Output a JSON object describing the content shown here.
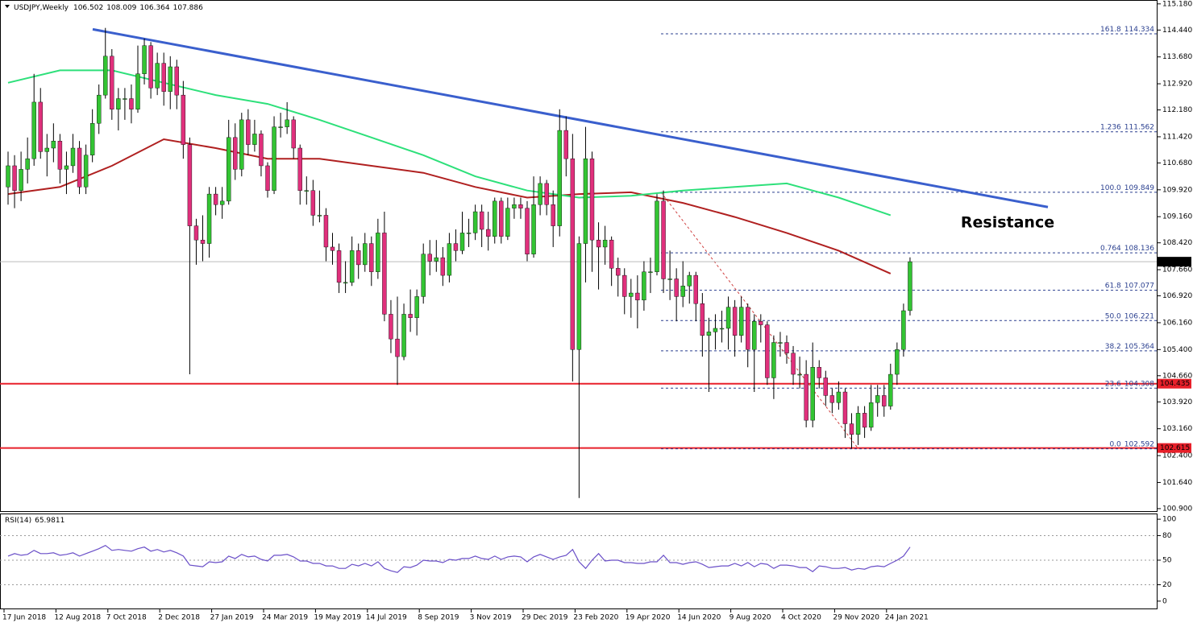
{
  "chart_data": {
    "type": "candlestick",
    "symbol": "USDJPY,Weekly",
    "categories": [
      "17 Jun 2018",
      null,
      null,
      null,
      null,
      null,
      null,
      null,
      "12 Aug 2018",
      null,
      null,
      null,
      null,
      null,
      null,
      null,
      "7 Oct 2018",
      null,
      null,
      null,
      null,
      null,
      null,
      null,
      "2 Dec 2018",
      null,
      null,
      null,
      null,
      null,
      null,
      null,
      "27 Jan 2019",
      null,
      null,
      null,
      null,
      null,
      null,
      null,
      "24 Mar 2019",
      null,
      null,
      null,
      null,
      null,
      null,
      null,
      "19 May 2019",
      null,
      null,
      null,
      null,
      null,
      null,
      null,
      "14 Jul 2019",
      null,
      null,
      null,
      null,
      null,
      null,
      null,
      "8 Sep 2019",
      null,
      null,
      null,
      null,
      null,
      null,
      null,
      "3 Nov 2019",
      null,
      null,
      null,
      null,
      null,
      null,
      null,
      "29 Dec 2019",
      null,
      null,
      null,
      null,
      null,
      null,
      null,
      "23 Feb 2020",
      null,
      null,
      null,
      null,
      null,
      null,
      null,
      "19 Apr 2020",
      null,
      null,
      null,
      null,
      null,
      null,
      null,
      "14 Jun 2020",
      null,
      null,
      null,
      null,
      null,
      null,
      null,
      "9 Aug 2020",
      null,
      null,
      null,
      null,
      null,
      null,
      null,
      "4 Oct 2020",
      null,
      null,
      null,
      null,
      null,
      null,
      null,
      "29 Nov 2020",
      null,
      null,
      null,
      null,
      null,
      null,
      null,
      "24 Jan 2021",
      null,
      null,
      null
    ],
    "open": [
      110.0,
      110.6,
      109.9,
      110.5,
      110.8,
      112.4,
      111.0,
      111.1,
      111.3,
      110.5,
      110.6,
      111.1,
      110.0,
      110.9,
      111.8,
      112.6,
      113.7,
      112.2,
      112.5,
      112.5,
      112.2,
      113.2,
      114.0,
      112.8,
      113.5,
      112.7,
      113.4,
      112.6,
      111.2,
      108.9,
      108.5,
      108.4,
      109.8,
      109.5,
      109.6,
      111.4,
      110.5,
      111.9,
      111.2,
      111.5,
      110.6,
      109.9,
      111.7,
      111.7,
      111.9,
      111.1,
      109.9,
      109.9,
      109.2,
      109.2,
      108.3,
      108.2,
      107.3,
      107.3,
      108.2,
      107.8,
      108.4,
      107.6,
      108.7,
      106.4,
      105.7,
      105.2,
      106.4,
      106.3,
      106.9,
      108.1,
      107.9,
      108.0,
      107.5,
      108.4,
      108.2,
      108.7,
      108.7,
      109.3,
      108.8,
      108.6,
      109.6,
      108.6,
      109.4,
      109.5,
      109.4,
      108.1,
      109.5,
      110.1,
      109.5,
      108.9,
      111.6,
      110.8,
      105.4,
      108.4,
      110.8,
      108.5,
      108.3,
      108.5,
      107.7,
      107.5,
      106.9,
      107.0,
      106.8,
      107.6,
      107.6,
      109.6,
      107.4,
      107.4,
      106.9,
      107.2,
      107.5,
      106.7,
      105.8,
      105.9,
      106.0,
      106.0,
      106.6,
      105.8,
      106.6,
      105.4,
      106.2,
      106.1,
      104.6,
      105.6,
      105.6,
      105.3,
      104.7,
      104.7,
      103.4,
      104.9,
      104.6,
      104.1,
      103.9,
      104.2,
      103.3,
      103.0,
      103.6,
      103.2,
      103.9,
      104.1,
      103.8,
      104.7,
      105.4,
      106.502
    ],
    "high": [
      111.0,
      110.9,
      111.0,
      111.4,
      113.2,
      112.8,
      111.5,
      111.8,
      111.5,
      111.0,
      111.5,
      111.3,
      111.2,
      112.2,
      112.9,
      114.5,
      113.9,
      112.8,
      112.8,
      112.9,
      114.0,
      114.2,
      114.1,
      113.8,
      113.8,
      113.7,
      113.6,
      113.0,
      111.4,
      109.1,
      109.2,
      110.0,
      110.0,
      110.0,
      111.9,
      111.8,
      112.1,
      112.2,
      111.9,
      111.6,
      110.7,
      112.0,
      112.1,
      112.4,
      112.0,
      111.2,
      110.3,
      110.2,
      109.9,
      109.4,
      108.7,
      108.4,
      107.9,
      108.6,
      108.4,
      108.7,
      108.6,
      109.1,
      109.3,
      106.8,
      106.9,
      106.7,
      107.1,
      107.1,
      108.4,
      108.5,
      108.5,
      108.3,
      108.7,
      108.8,
      109.3,
      109.1,
      109.5,
      109.5,
      109.3,
      109.7,
      109.7,
      109.7,
      109.7,
      109.7,
      109.6,
      110.3,
      110.3,
      110.2,
      109.9,
      112.2,
      112.0,
      111.5,
      108.6,
      111.7,
      111.0,
      109.0,
      108.9,
      108.6,
      108.0,
      107.7,
      107.4,
      107.5,
      107.9,
      108.0,
      109.8,
      109.9,
      108.2,
      107.7,
      107.9,
      107.6,
      107.6,
      107.0,
      106.3,
      106.4,
      106.5,
      106.9,
      106.8,
      106.9,
      106.7,
      106.4,
      106.4,
      106.2,
      105.8,
      105.9,
      105.8,
      105.5,
      105.2,
      105.1,
      105.6,
      105.1,
      104.8,
      104.3,
      104.5,
      104.3,
      103.6,
      103.8,
      103.8,
      104.4,
      104.4,
      104.4,
      105.0,
      105.6,
      106.7,
      108.009
    ],
    "low": [
      109.5,
      109.4,
      109.6,
      110.1,
      110.6,
      110.8,
      110.3,
      110.7,
      110.1,
      109.8,
      110.4,
      109.8,
      109.8,
      110.7,
      111.5,
      112.5,
      111.9,
      111.6,
      111.9,
      111.8,
      112.1,
      112.9,
      112.5,
      112.6,
      112.3,
      112.2,
      112.2,
      110.8,
      104.7,
      107.8,
      107.9,
      108.0,
      109.2,
      109.1,
      109.5,
      110.2,
      110.3,
      110.9,
      111.0,
      110.3,
      109.7,
      109.8,
      111.4,
      111.5,
      110.8,
      109.5,
      109.5,
      108.9,
      109.0,
      107.9,
      107.8,
      107.0,
      107.0,
      107.2,
      107.4,
      107.6,
      107.2,
      107.4,
      106.2,
      105.3,
      104.4,
      105.1,
      105.9,
      105.8,
      106.7,
      107.5,
      107.6,
      107.2,
      107.3,
      107.9,
      108.1,
      108.3,
      108.5,
      108.3,
      108.2,
      108.4,
      108.4,
      108.5,
      109.1,
      109.1,
      107.9,
      108.0,
      109.2,
      109.2,
      108.3,
      108.6,
      110.3,
      104.5,
      101.2,
      107.3,
      107.6,
      107.1,
      107.8,
      107.2,
      106.9,
      106.4,
      106.3,
      106.0,
      106.5,
      107.0,
      107.5,
      107.0,
      106.8,
      106.2,
      106.6,
      106.7,
      106.2,
      105.2,
      104.2,
      105.4,
      105.6,
      105.4,
      105.2,
      105.6,
      104.9,
      104.2,
      105.6,
      104.4,
      104.0,
      105.2,
      105.0,
      104.4,
      104.3,
      103.2,
      103.2,
      104.3,
      103.8,
      103.6,
      103.7,
      102.9,
      102.6,
      102.7,
      102.9,
      103.1,
      103.5,
      103.5,
      103.7,
      104.4,
      105.2,
      106.364
    ],
    "close": [
      110.6,
      109.9,
      110.5,
      110.8,
      112.4,
      111.0,
      111.1,
      111.3,
      110.5,
      110.6,
      111.1,
      110.0,
      110.9,
      111.8,
      112.6,
      113.7,
      112.2,
      112.5,
      112.5,
      112.2,
      113.2,
      114.0,
      112.8,
      113.5,
      112.7,
      113.4,
      112.6,
      111.2,
      108.9,
      108.5,
      108.4,
      109.8,
      109.5,
      109.6,
      111.4,
      110.5,
      111.9,
      111.2,
      111.5,
      110.6,
      109.9,
      111.7,
      111.7,
      111.9,
      111.1,
      109.9,
      109.9,
      109.2,
      109.2,
      108.3,
      108.2,
      107.3,
      107.3,
      108.2,
      107.8,
      108.4,
      107.6,
      108.7,
      106.4,
      105.7,
      105.2,
      106.4,
      106.3,
      106.9,
      108.1,
      107.9,
      108.0,
      107.5,
      108.4,
      108.2,
      108.7,
      108.7,
      109.3,
      108.8,
      108.6,
      109.6,
      108.6,
      109.4,
      109.5,
      109.4,
      108.1,
      109.5,
      110.1,
      109.5,
      108.9,
      111.6,
      110.8,
      105.4,
      108.4,
      110.8,
      108.5,
      108.3,
      108.5,
      107.7,
      107.5,
      106.9,
      107.0,
      106.8,
      107.6,
      107.6,
      109.6,
      107.4,
      107.4,
      106.9,
      107.2,
      107.5,
      106.7,
      105.8,
      105.9,
      106.0,
      106.0,
      106.6,
      105.8,
      106.6,
      105.4,
      106.2,
      106.1,
      104.6,
      105.6,
      105.6,
      105.3,
      104.7,
      104.7,
      103.4,
      104.9,
      104.6,
      104.1,
      103.9,
      104.2,
      103.3,
      103.0,
      103.6,
      103.2,
      103.9,
      104.1,
      103.8,
      104.7,
      105.4,
      106.5,
      107.886
    ],
    "up_color": "#33c433",
    "down_color": "#e0307c",
    "ylim": [
      100.83,
      115.29
    ],
    "yticks": [
      {
        "value": 100.9,
        "label": "100.900"
      },
      {
        "value": 101.64,
        "label": "101.640"
      },
      {
        "value": 102.4,
        "label": "102.400"
      },
      {
        "value": 103.16,
        "label": "103.160"
      },
      {
        "value": 103.92,
        "label": "103.920"
      },
      {
        "value": 104.66,
        "label": "104.660"
      },
      {
        "value": 105.4,
        "label": "105.400"
      },
      {
        "value": 106.16,
        "label": "106.160"
      },
      {
        "value": 106.92,
        "label": "106.920"
      },
      {
        "value": 107.66,
        "label": "107.660"
      },
      {
        "value": 108.42,
        "label": "108.420"
      },
      {
        "value": 109.16,
        "label": "109.160"
      },
      {
        "value": 109.92,
        "label": "109.920"
      },
      {
        "value": 110.68,
        "label": "110.680"
      },
      {
        "value": 111.42,
        "label": "111.420"
      },
      {
        "value": 112.18,
        "label": "112.180"
      },
      {
        "value": 112.92,
        "label": "112.920"
      },
      {
        "value": 113.68,
        "label": "113.680"
      },
      {
        "value": 114.44,
        "label": "114.440"
      },
      {
        "value": 115.18,
        "label": "115.180"
      }
    ],
    "overlays": [
      {
        "color": "#b02020",
        "x": [
          "17 Jun 2018",
          "12 Aug 2018",
          "7 Oct 2018",
          "2 Dec 2018",
          "27 Jan 2019",
          "24 Mar 2019",
          "19 May 2019",
          "14 Jul 2019",
          "8 Sep 2019",
          "3 Nov 2019",
          "29 Dec 2019",
          "23 Feb 2020",
          "19 Apr 2020",
          "14 Jun 2020",
          "9 Aug 2020",
          "4 Oct 2020",
          "29 Nov 2020",
          "24 Jan 2021"
        ],
        "values": [
          109.8,
          110.0,
          110.6,
          111.35,
          111.1,
          110.8,
          110.8,
          110.6,
          110.4,
          110.0,
          109.7,
          109.8,
          109.85,
          109.55,
          109.15,
          108.7,
          108.2,
          107.55
        ]
      },
      {
        "color": "#2de07a",
        "x": [
          "17 Jun 2018",
          "12 Aug 2018",
          "7 Oct 2018",
          "2 Dec 2018",
          "27 Jan 2019",
          "24 Mar 2019",
          "19 May 2019",
          "14 Jul 2019",
          "8 Sep 2019",
          "3 Nov 2019",
          "29 Dec 2019",
          "23 Feb 2020",
          "19 Apr 2020",
          "14 Jun 2020",
          "9 Aug 2020",
          "4 Oct 2020",
          "29 Nov 2020",
          "24 Jan 2021"
        ],
        "values": [
          112.95,
          113.3,
          113.3,
          112.95,
          112.6,
          112.35,
          111.9,
          111.4,
          110.9,
          110.3,
          109.9,
          109.7,
          109.75,
          109.9,
          110.0,
          110.1,
          109.7,
          109.2
        ]
      }
    ],
    "trendline": {
      "color": "#3a5fcd",
      "x": [
        "7 Oct 2018",
        "24 Jan 2021"
      ],
      "values": [
        114.36,
        110.26
      ]
    },
    "levels": [
      {
        "value": 104.435,
        "color": "#e8202a"
      },
      {
        "value": 102.615,
        "color": "#e8202a"
      }
    ],
    "fibonacci": {
      "color": "#2a3f8f",
      "lines": [
        {
          "level": "161.8",
          "price": 114.334
        },
        {
          "level": "1.236",
          "price": 111.562
        },
        {
          "level": "100.0",
          "price": 109.849
        },
        {
          "level": "0.764",
          "price": 108.136
        },
        {
          "level": "61.8",
          "price": 107.077
        },
        {
          "level": "50.0",
          "price": 106.221
        },
        {
          "level": "38.2",
          "price": 105.364
        },
        {
          "level": "23.6",
          "price": 104.308
        },
        {
          "level": "0.0",
          "price": 102.592
        }
      ]
    },
    "annotation": {
      "text": "Resistance",
      "color": "#e8202a"
    },
    "rsi": {
      "name": "RSI(14)",
      "color": "#6a4fc8",
      "ylim": [
        -8,
        105
      ],
      "yticks": [
        0,
        20,
        50,
        80,
        100
      ],
      "values": [
        55,
        58,
        56,
        57,
        62,
        58,
        58,
        59,
        56,
        57,
        59,
        55,
        58,
        61,
        64,
        68,
        62,
        63,
        62,
        61,
        64,
        66,
        61,
        63,
        60,
        62,
        59,
        55,
        44,
        43,
        42,
        48,
        47,
        48,
        55,
        52,
        57,
        54,
        55,
        51,
        49,
        56,
        56,
        57,
        54,
        49,
        49,
        46,
        46,
        43,
        43,
        40,
        40,
        45,
        43,
        46,
        43,
        48,
        40,
        37,
        35,
        42,
        41,
        44,
        50,
        49,
        49,
        47,
        51,
        50,
        52,
        52,
        55,
        52,
        51,
        55,
        51,
        54,
        55,
        54,
        48,
        54,
        57,
        54,
        51,
        54,
        56,
        63,
        48,
        40,
        50,
        58,
        49,
        50,
        50,
        47,
        47,
        46,
        46,
        48,
        48,
        56,
        47,
        47,
        45,
        47,
        48,
        45,
        41,
        42,
        43,
        43,
        46,
        43,
        47,
        42,
        46,
        45,
        40,
        44,
        44,
        43,
        41,
        41,
        36,
        43,
        42,
        40,
        40,
        41,
        38,
        40,
        39,
        42,
        43,
        42,
        46,
        50,
        55,
        65.9811
      ]
    }
  }
}
